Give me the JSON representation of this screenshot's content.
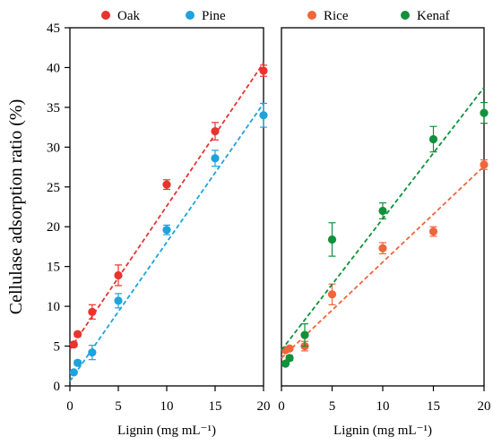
{
  "chart_data": [
    {
      "type": "scatter",
      "title": "",
      "xlabel": "Lignin (mg mL⁻¹)",
      "ylabel": "Cellulase adsorption ratio (%)",
      "xlim": [
        0,
        20
      ],
      "ylim": [
        0,
        45
      ],
      "xticks": [
        "0",
        "5",
        "10",
        "15",
        "20"
      ],
      "yticks": [
        "0",
        "5",
        "10",
        "15",
        "20",
        "25",
        "30",
        "35",
        "40",
        "45"
      ],
      "grid": false,
      "legend_position": "top",
      "series": [
        {
          "name": "Oak",
          "color": "#e8332f",
          "x": [
            0.4,
            0.8,
            2.3,
            5.0,
            10.0,
            15.0,
            20.0
          ],
          "y": [
            5.2,
            6.5,
            9.3,
            13.9,
            25.3,
            32.0,
            39.6
          ],
          "err": [
            0.3,
            0.3,
            0.9,
            1.3,
            0.6,
            1.1,
            0.7
          ],
          "fit": [
            [
              0,
              4.6
            ],
            [
              20,
              40.6
            ]
          ]
        },
        {
          "name": "Pine",
          "color": "#1ea3dc",
          "x": [
            0.4,
            0.8,
            2.3,
            5.0,
            10.0,
            15.0,
            20.0
          ],
          "y": [
            1.7,
            2.9,
            4.2,
            10.7,
            19.6,
            28.6,
            34.0
          ],
          "err": [
            0.2,
            0.3,
            0.9,
            0.9,
            0.6,
            1.0,
            1.5
          ],
          "fit": [
            [
              0,
              0.6
            ],
            [
              20,
              35.5
            ]
          ]
        },
        {
          "name": "Rice",
          "color": "#f0653a",
          "x": [
            0.4,
            0.8,
            2.3,
            5.0,
            10.0,
            15.0,
            20.0
          ],
          "y": [
            4.5,
            4.7,
            5.0,
            11.5,
            17.3,
            19.4,
            27.8
          ],
          "err": [
            0.2,
            0.2,
            0.6,
            1.3,
            0.7,
            0.6,
            0.6
          ],
          "fit": [
            [
              0,
              3.5
            ],
            [
              20,
              27.6
            ]
          ]
        },
        {
          "name": "Kenaf",
          "color": "#10913a",
          "x": [
            0.4,
            0.8,
            2.3,
            5.0,
            10.0,
            15.0,
            20.0
          ],
          "y": [
            2.8,
            3.5,
            6.4,
            18.4,
            22.0,
            31.0,
            34.3
          ],
          "err": [
            0.2,
            0.3,
            1.4,
            2.1,
            1.0,
            1.6,
            1.3
          ],
          "fit": [
            [
              0,
              4.5
            ],
            [
              20,
              37.5
            ]
          ]
        }
      ],
      "panels": [
        {
          "series": [
            "Oak",
            "Pine"
          ]
        },
        {
          "series": [
            "Rice",
            "Kenaf"
          ]
        }
      ]
    }
  ]
}
